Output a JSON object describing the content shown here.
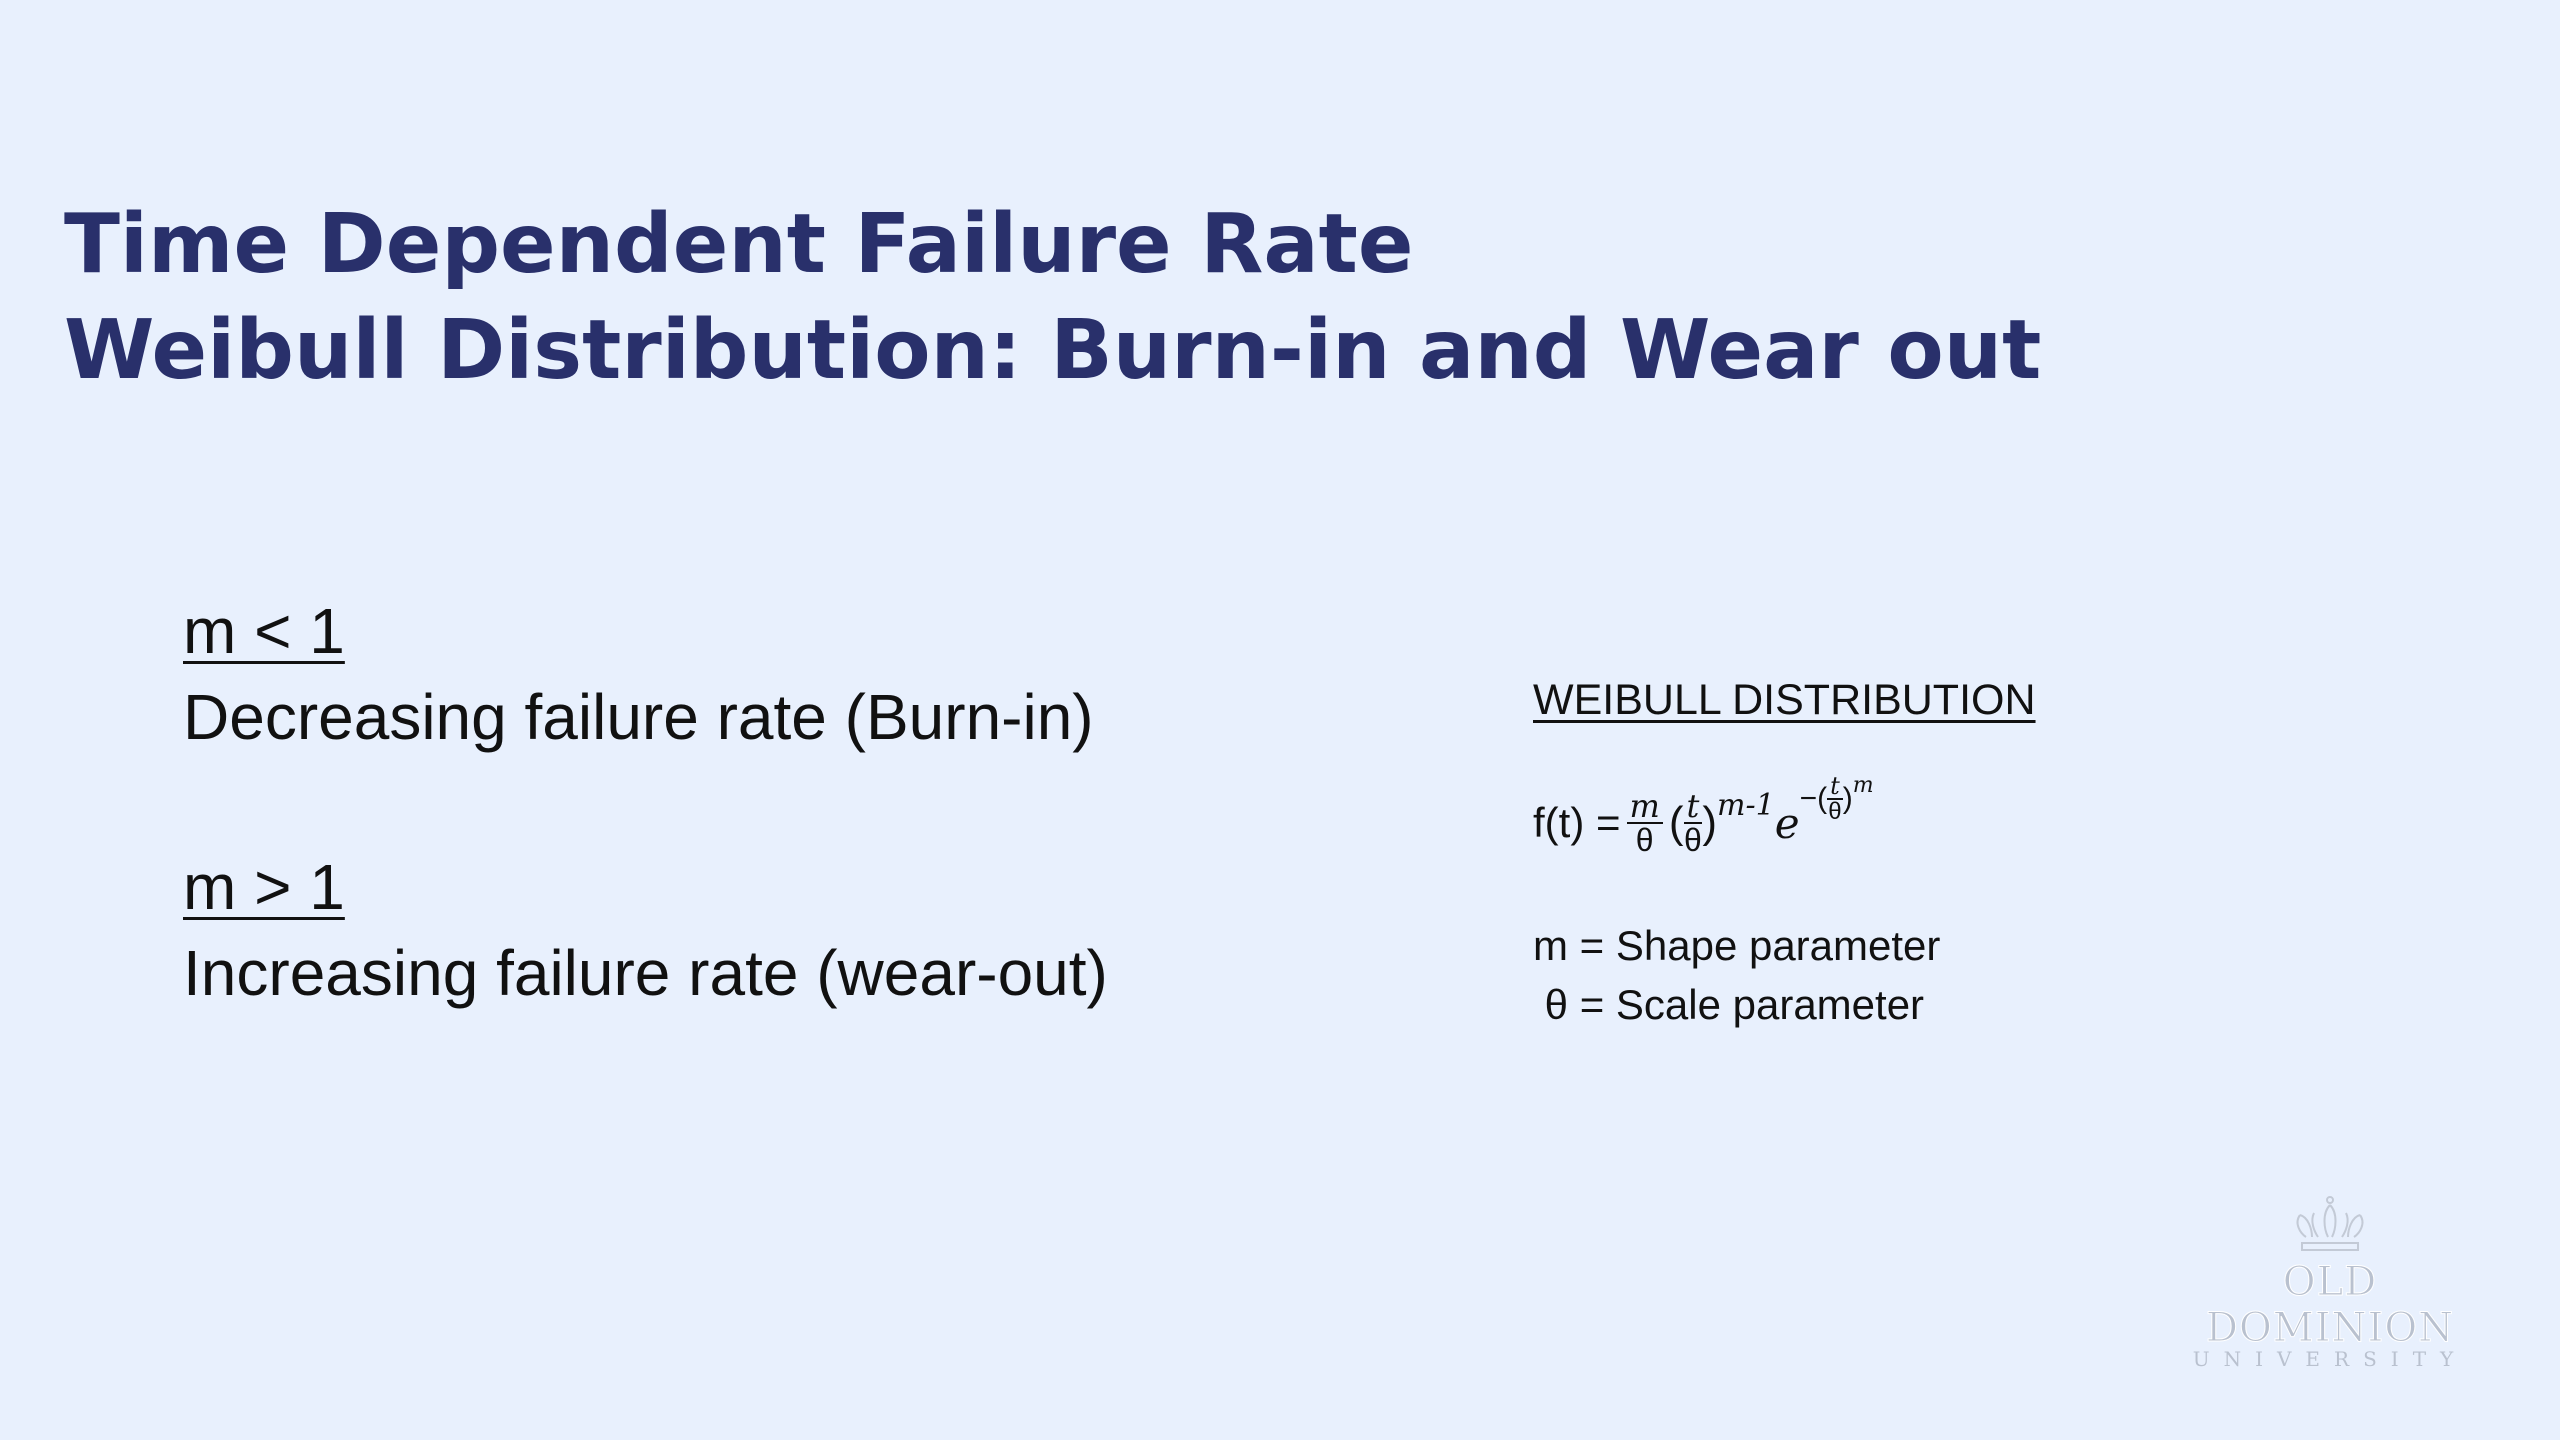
{
  "title": {
    "line1": "Time Dependent Failure Rate",
    "line2": "Weibull Distribution: Burn-in and Wear out"
  },
  "conditions": [
    {
      "condition": "m < 1",
      "description": "Decreasing failure rate (Burn-in)"
    },
    {
      "condition": "m > 1",
      "description": "Increasing failure rate (wear-out)"
    }
  ],
  "weibull": {
    "heading": "WEIBULL DISTRIBUTION",
    "formula": {
      "lhs": "f(t) =",
      "frac1_num": "m",
      "frac1_den": "θ",
      "open": "(",
      "frac2_num": "t",
      "frac2_den": "θ",
      "close": ")",
      "exp1": "m-1",
      "e": "e",
      "minus": "−(",
      "frac3_num": "t",
      "frac3_den": "θ",
      "close2": ")",
      "exp2": "m"
    },
    "params": [
      "m = Shape parameter",
      " θ = Scale parameter"
    ]
  },
  "logo": {
    "name": "OLD DOMINION",
    "sub": "UNIVERSITY"
  },
  "colors": {
    "background": "#e8f0fd",
    "title": "#29306b"
  }
}
